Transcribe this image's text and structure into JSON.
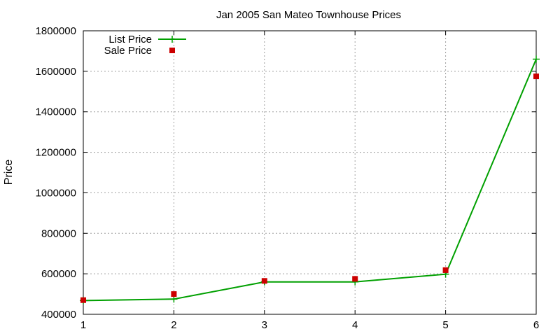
{
  "chart_data": {
    "type": "line",
    "title": "Jan 2005 San Mateo Townhouse Prices",
    "xlabel": "",
    "ylabel": "Price",
    "x": [
      1,
      2,
      3,
      4,
      5,
      6
    ],
    "xlim": [
      1,
      6
    ],
    "ylim": [
      400000,
      1800000
    ],
    "xticks": [
      "1",
      "2",
      "3",
      "4",
      "5",
      "6"
    ],
    "yticks": [
      "400000",
      "600000",
      "800000",
      "1000000",
      "1200000",
      "1400000",
      "1600000",
      "1800000"
    ],
    "grid": true,
    "legend_position": "top-left",
    "series": [
      {
        "name": "List Price",
        "style": "line with plus markers",
        "color": "#00a000",
        "values": [
          468000,
          475000,
          560000,
          560000,
          598000,
          1660000
        ]
      },
      {
        "name": "Sale Price",
        "style": "square markers",
        "color": "#cc0000",
        "values": [
          470000,
          500000,
          565000,
          575000,
          618000,
          1575000
        ]
      }
    ]
  }
}
